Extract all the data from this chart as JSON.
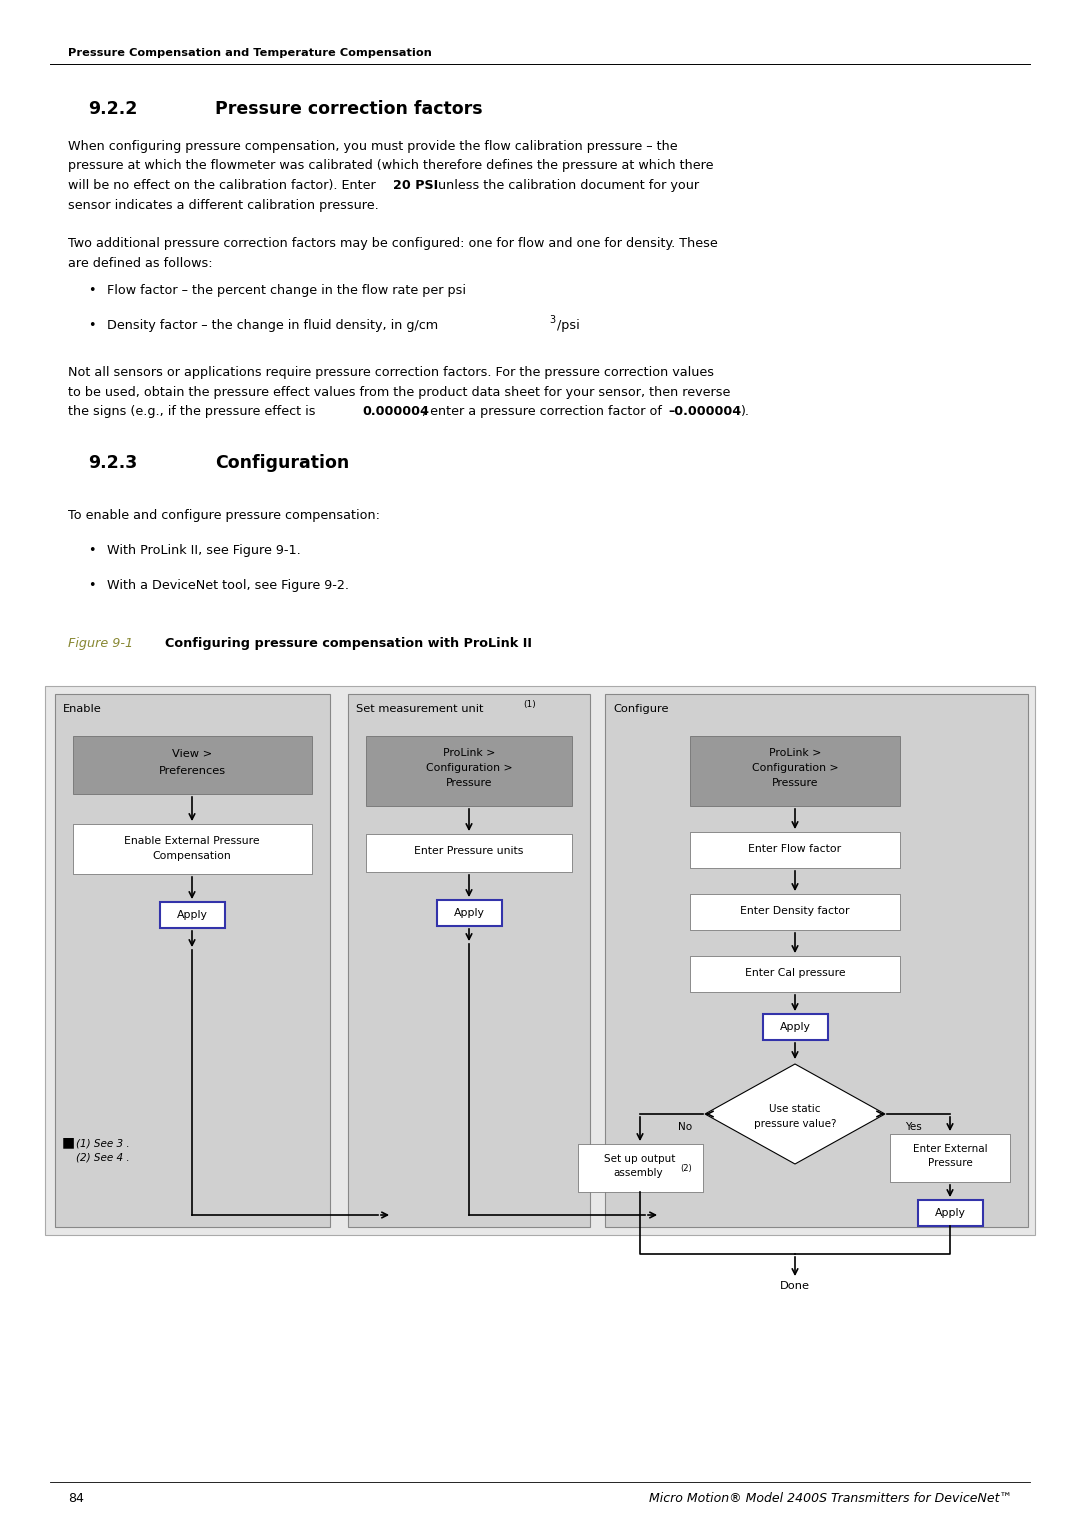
{
  "page_bg": "#ffffff",
  "header_text": "Pressure Compensation and Temperature Compensation",
  "section_922_num": "9.2.2",
  "section_922_title": "Pressure correction factors",
  "section_923_num": "9.2.3",
  "section_923_title": "Configuration",
  "figure_caption_prefix": "Figure 9-1",
  "figure_caption_text": "Configuring pressure compensation with ProLink II",
  "footer_page": "84",
  "footer_right": "Micro Motion® Model 2400S Transmitters for DeviceNet™",
  "box_bg_dark": "#999999",
  "box_bg_white": "#ffffff",
  "apply_border": "#3333aa",
  "diagram_outer_bg": "#e8e8e8",
  "diagram_col_bg": "#d0d0d0",
  "text_color": "#000000",
  "line_color": "#000000",
  "figure_label_color": "#888833"
}
